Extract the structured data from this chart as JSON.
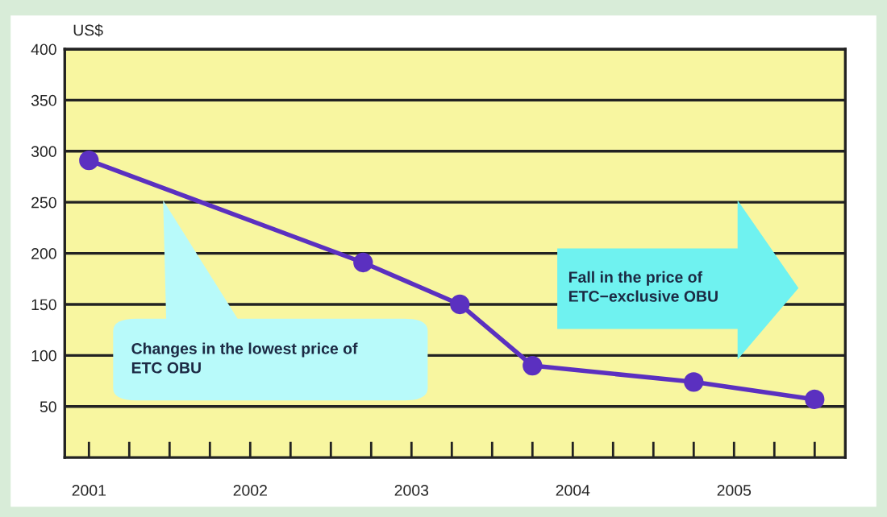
{
  "chart_data": {
    "type": "line",
    "ylabel": "US$",
    "x": [
      2001,
      2002.7,
      2003.3,
      2003.75,
      2004.75,
      2005.5
    ],
    "series": [
      {
        "color": "#5b30c0",
        "values": [
          291,
          191,
          150,
          90,
          74,
          57
        ]
      }
    ],
    "xlim": [
      2000.85,
      2005.69
    ],
    "xticks": [
      {
        "value": 2001,
        "label": "2001"
      },
      {
        "value": 2001.25,
        "label": null
      },
      {
        "value": 2001.5,
        "label": null
      },
      {
        "value": 2001.75,
        "label": null
      },
      {
        "value": 2002,
        "label": "2002"
      },
      {
        "value": 2002.25,
        "label": null
      },
      {
        "value": 2002.5,
        "label": null
      },
      {
        "value": 2002.75,
        "label": null
      },
      {
        "value": 2003,
        "label": "2003"
      },
      {
        "value": 2003.25,
        "label": null
      },
      {
        "value": 2003.5,
        "label": null
      },
      {
        "value": 2003.75,
        "label": null
      },
      {
        "value": 2004,
        "label": "2004"
      },
      {
        "value": 2004.25,
        "label": null
      },
      {
        "value": 2004.5,
        "label": null
      },
      {
        "value": 2004.75,
        "label": null
      },
      {
        "value": 2005,
        "label": "2005"
      },
      {
        "value": 2005.25,
        "label": null
      },
      {
        "value": 2005.5,
        "label": null
      }
    ],
    "ylim": [
      0,
      400
    ],
    "yticks": [
      50,
      100,
      150,
      200,
      250,
      300,
      350,
      400
    ],
    "grid": "y",
    "marker": "circle",
    "line_style": "solid",
    "annotations": [
      "Changes in the lowest price of\nETC OBU",
      "Fall in the price of\nETC−exclusive OBU"
    ]
  }
}
